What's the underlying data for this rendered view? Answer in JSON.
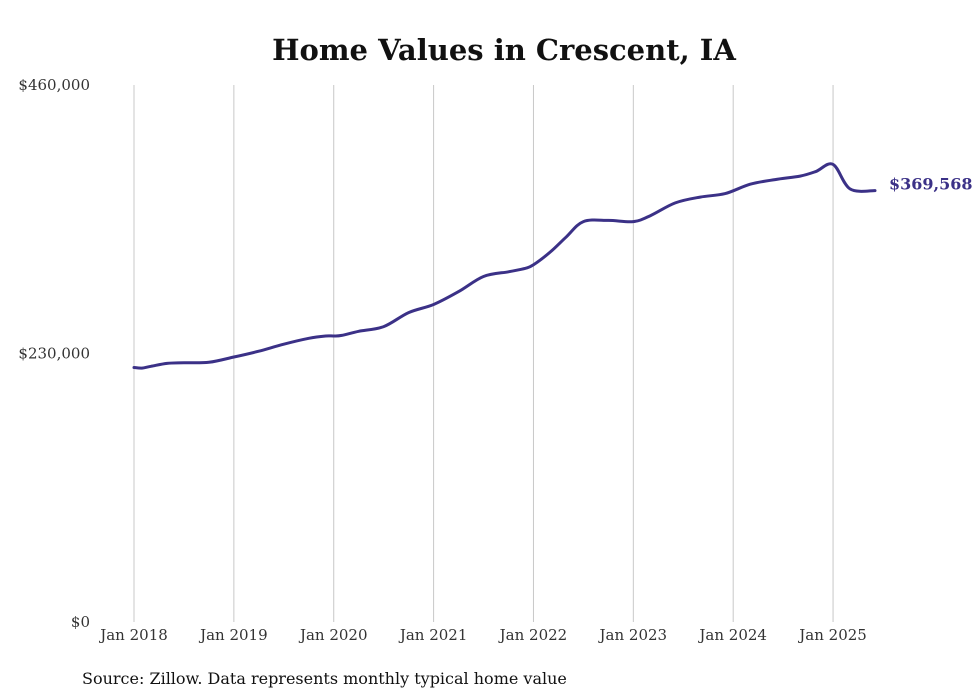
{
  "chart_data": {
    "type": "line",
    "title": "Home Values in Crescent, IA",
    "xlabel": "",
    "ylabel": "",
    "ylim": [
      0,
      460000
    ],
    "yticks": [
      {
        "value": 0,
        "label": "$0"
      },
      {
        "value": 230000,
        "label": "$230,000"
      },
      {
        "value": 460000,
        "label": "$460,000"
      }
    ],
    "xticks": [
      {
        "value": 2018.0,
        "label": "Jan 2018"
      },
      {
        "value": 2019.0,
        "label": "Jan 2019"
      },
      {
        "value": 2020.0,
        "label": "Jan 2020"
      },
      {
        "value": 2021.0,
        "label": "Jan 2021"
      },
      {
        "value": 2022.0,
        "label": "Jan 2022"
      },
      {
        "value": 2023.0,
        "label": "Jan 2023"
      },
      {
        "value": 2024.0,
        "label": "Jan 2024"
      },
      {
        "value": 2025.0,
        "label": "Jan 2025"
      }
    ],
    "xlim": [
      2018.0,
      2025.42
    ],
    "grid": "vertical",
    "series": [
      {
        "color": "#3b3187",
        "end_label": "$369,568",
        "x": [
          2018.0,
          2018.08,
          2018.17,
          2018.33,
          2018.5,
          2018.75,
          2019.0,
          2019.25,
          2019.5,
          2019.75,
          2019.92,
          2020.0,
          2020.08,
          2020.25,
          2020.5,
          2020.75,
          2021.0,
          2021.25,
          2021.5,
          2021.75,
          2021.92,
          2022.0,
          2022.17,
          2022.33,
          2022.5,
          2022.75,
          2023.0,
          2023.17,
          2023.42,
          2023.67,
          2023.92,
          2024.17,
          2024.42,
          2024.67,
          2024.83,
          2025.0,
          2025.17,
          2025.42
        ],
        "values": [
          218000,
          217500,
          219000,
          221500,
          222000,
          222500,
          227000,
          232000,
          238000,
          243000,
          245000,
          245000,
          245500,
          249000,
          253000,
          265000,
          272000,
          283000,
          296000,
          300000,
          303000,
          306000,
          317000,
          330000,
          343000,
          344000,
          343000,
          348000,
          359000,
          364000,
          367000,
          375000,
          379000,
          382000,
          386000,
          392000,
          371000,
          369568
        ]
      }
    ]
  },
  "source_note": "Source: Zillow. Data represents monthly typical home value"
}
